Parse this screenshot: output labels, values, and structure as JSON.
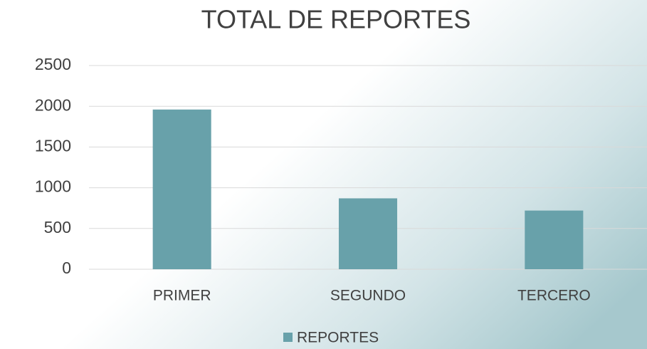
{
  "chart_data": {
    "type": "bar",
    "title": "TOTAL DE REPORTES",
    "categories": [
      "PRIMER",
      "SEGUNDO",
      "TERCERO"
    ],
    "series": [
      {
        "name": "REPORTES",
        "color": "#68a1aa",
        "values": [
          1960,
          870,
          720
        ]
      }
    ],
    "ylim": [
      0,
      2500
    ],
    "yticks": [
      0,
      500,
      1000,
      1500,
      2000,
      2500
    ],
    "grid": true,
    "legend": "bottom"
  }
}
